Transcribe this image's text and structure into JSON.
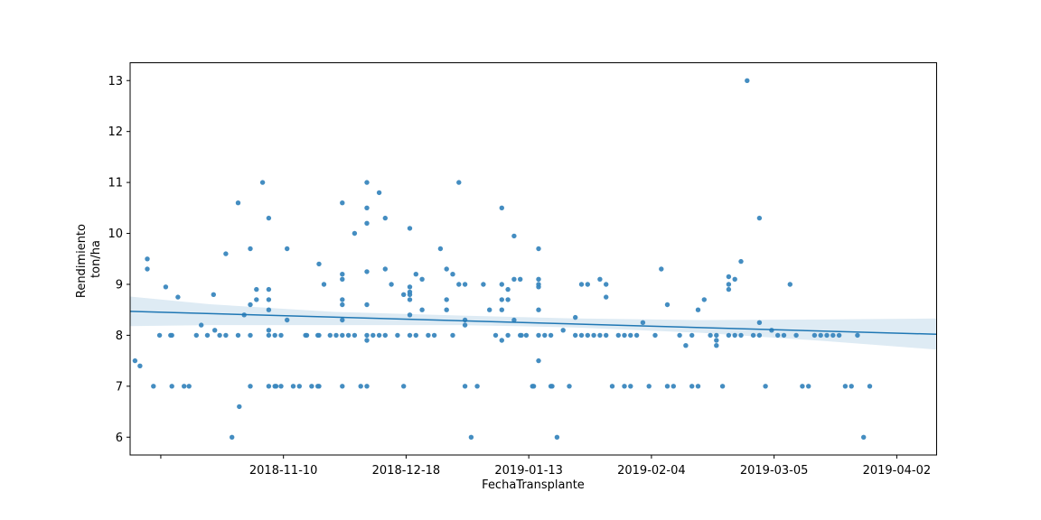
{
  "chart_data": {
    "type": "scatter",
    "title": "",
    "xlabel": "FechaTransplante",
    "ylabel": [
      "Rendimiento",
      "ton/ha"
    ],
    "x_ticks": [
      {
        "x": 12,
        "label": ""
      },
      {
        "x": 32,
        "label": "2018-11-10"
      },
      {
        "x": 52,
        "label": "2018-12-18"
      },
      {
        "x": 72,
        "label": "2019-01-13"
      },
      {
        "x": 92,
        "label": "2019-02-04"
      },
      {
        "x": 112,
        "label": "2019-03-05"
      },
      {
        "x": 132,
        "label": "2019-04-02"
      }
    ],
    "xlim": [
      7,
      138.5
    ],
    "ylim": [
      5.65,
      13.35
    ],
    "y_ticks": [
      6,
      7,
      8,
      9,
      10,
      11,
      12,
      13
    ],
    "grid": false,
    "legend": "none",
    "point_color": "#3a87be",
    "line_color": "#1f77b4",
    "band_color": "#1f77b4",
    "regression": {
      "x": [
        7,
        138.5
      ],
      "y": [
        8.47,
        8.02
      ]
    },
    "ci_band": {
      "x": [
        7,
        20,
        40,
        60,
        70,
        80,
        100,
        120,
        138.5
      ],
      "upper": [
        8.76,
        8.61,
        8.46,
        8.39,
        8.36,
        8.33,
        8.3,
        8.31,
        8.33
      ],
      "lower": [
        8.18,
        8.2,
        8.2,
        8.2,
        8.18,
        8.15,
        8.05,
        7.89,
        7.72
      ]
    },
    "points": [
      [
        7.8,
        7.5
      ],
      [
        8.6,
        7.4
      ],
      [
        9.8,
        9.5
      ],
      [
        9.8,
        9.3
      ],
      [
        10.8,
        7.0
      ],
      [
        11.8,
        8.0
      ],
      [
        12.8,
        8.95
      ],
      [
        13.6,
        8.0
      ],
      [
        13.8,
        8.0
      ],
      [
        13.8,
        7.0
      ],
      [
        14.8,
        8.75
      ],
      [
        15.8,
        7.0
      ],
      [
        16.6,
        7.0
      ],
      [
        17.8,
        8.0
      ],
      [
        18.6,
        8.2
      ],
      [
        19.6,
        8.0
      ],
      [
        20.6,
        8.8
      ],
      [
        20.8,
        8.1
      ],
      [
        21.6,
        8.0
      ],
      [
        22.6,
        9.6
      ],
      [
        22.6,
        8.0
      ],
      [
        23.6,
        6.0
      ],
      [
        24.6,
        10.6
      ],
      [
        24.6,
        8.0
      ],
      [
        24.8,
        6.6
      ],
      [
        25.6,
        8.4
      ],
      [
        26.6,
        9.7
      ],
      [
        26.6,
        8.6
      ],
      [
        26.6,
        8.0
      ],
      [
        26.6,
        7.0
      ],
      [
        27.6,
        8.9
      ],
      [
        27.6,
        8.7
      ],
      [
        28.6,
        11.0
      ],
      [
        29.6,
        10.3
      ],
      [
        29.6,
        8.9
      ],
      [
        29.6,
        8.7
      ],
      [
        29.6,
        8.5
      ],
      [
        29.6,
        8.1
      ],
      [
        29.6,
        8.0
      ],
      [
        29.6,
        7.0
      ],
      [
        30.6,
        8.0
      ],
      [
        30.6,
        7.0
      ],
      [
        30.8,
        7.0
      ],
      [
        31.6,
        8.0
      ],
      [
        31.6,
        7.0
      ],
      [
        32.6,
        9.7
      ],
      [
        32.6,
        8.3
      ],
      [
        33.6,
        7.0
      ],
      [
        34.6,
        7.0
      ],
      [
        35.6,
        8.0
      ],
      [
        35.8,
        8.0
      ],
      [
        36.6,
        7.0
      ],
      [
        37.6,
        8.0
      ],
      [
        37.6,
        7.0
      ],
      [
        37.8,
        9.4
      ],
      [
        37.8,
        8.0
      ],
      [
        37.8,
        7.0
      ],
      [
        38.6,
        9.0
      ],
      [
        39.6,
        8.0
      ],
      [
        40.6,
        8.0
      ],
      [
        41.6,
        10.6
      ],
      [
        41.6,
        9.2
      ],
      [
        41.6,
        9.1
      ],
      [
        41.6,
        8.7
      ],
      [
        41.6,
        8.6
      ],
      [
        41.6,
        8.3
      ],
      [
        41.6,
        8.0
      ],
      [
        41.6,
        7.0
      ],
      [
        42.6,
        8.0
      ],
      [
        43.6,
        10.0
      ],
      [
        43.6,
        8.0
      ],
      [
        44.6,
        7.0
      ],
      [
        45.6,
        11.0
      ],
      [
        45.6,
        10.5
      ],
      [
        45.6,
        10.2
      ],
      [
        45.6,
        9.25
      ],
      [
        45.6,
        8.6
      ],
      [
        45.6,
        8.0
      ],
      [
        45.6,
        7.9
      ],
      [
        45.6,
        7.0
      ],
      [
        46.6,
        8.0
      ],
      [
        47.6,
        10.8
      ],
      [
        47.6,
        8.0
      ],
      [
        48.6,
        10.3
      ],
      [
        48.6,
        9.3
      ],
      [
        48.6,
        8.0
      ],
      [
        49.6,
        9.0
      ],
      [
        50.6,
        8.0
      ],
      [
        51.6,
        8.8
      ],
      [
        51.6,
        7.0
      ],
      [
        52.6,
        10.1
      ],
      [
        52.6,
        8.95
      ],
      [
        52.6,
        8.85
      ],
      [
        52.6,
        8.8
      ],
      [
        52.6,
        8.7
      ],
      [
        52.6,
        8.4
      ],
      [
        52.6,
        8.0
      ],
      [
        53.6,
        9.2
      ],
      [
        53.6,
        8.0
      ],
      [
        54.6,
        9.1
      ],
      [
        54.6,
        8.5
      ],
      [
        55.6,
        8.0
      ],
      [
        56.6,
        8.0
      ],
      [
        57.6,
        9.7
      ],
      [
        58.6,
        9.3
      ],
      [
        58.6,
        8.7
      ],
      [
        58.6,
        8.5
      ],
      [
        59.6,
        9.2
      ],
      [
        59.6,
        8.0
      ],
      [
        60.6,
        11.0
      ],
      [
        60.6,
        9.0
      ],
      [
        61.6,
        9.0
      ],
      [
        61.6,
        8.3
      ],
      [
        61.6,
        8.2
      ],
      [
        61.6,
        7.0
      ],
      [
        62.6,
        6.0
      ],
      [
        63.6,
        7.0
      ],
      [
        64.6,
        9.0
      ],
      [
        65.6,
        8.5
      ],
      [
        66.6,
        8.0
      ],
      [
        67.6,
        10.5
      ],
      [
        67.6,
        9.0
      ],
      [
        67.6,
        8.7
      ],
      [
        67.6,
        8.5
      ],
      [
        67.6,
        7.9
      ],
      [
        68.6,
        8.9
      ],
      [
        68.6,
        8.7
      ],
      [
        68.6,
        8.0
      ],
      [
        69.6,
        9.95
      ],
      [
        69.6,
        9.1
      ],
      [
        69.6,
        8.3
      ],
      [
        70.6,
        9.1
      ],
      [
        70.6,
        8.0
      ],
      [
        70.8,
        8.0
      ],
      [
        71.6,
        8.0
      ],
      [
        72.6,
        7.0
      ],
      [
        72.8,
        7.0
      ],
      [
        73.6,
        9.7
      ],
      [
        73.6,
        9.1
      ],
      [
        73.6,
        9.0
      ],
      [
        73.6,
        8.95
      ],
      [
        73.6,
        8.5
      ],
      [
        73.6,
        8.0
      ],
      [
        73.6,
        7.5
      ],
      [
        74.6,
        8.0
      ],
      [
        75.6,
        8.0
      ],
      [
        75.6,
        7.0
      ],
      [
        75.8,
        7.0
      ],
      [
        76.6,
        6.0
      ],
      [
        77.6,
        8.1
      ],
      [
        78.6,
        7.0
      ],
      [
        79.6,
        8.35
      ],
      [
        79.6,
        8.0
      ],
      [
        80.6,
        9.0
      ],
      [
        80.6,
        8.0
      ],
      [
        81.6,
        9.0
      ],
      [
        81.6,
        8.0
      ],
      [
        82.6,
        8.0
      ],
      [
        83.6,
        9.1
      ],
      [
        83.6,
        8.0
      ],
      [
        84.6,
        9.0
      ],
      [
        84.6,
        8.75
      ],
      [
        84.6,
        8.0
      ],
      [
        85.6,
        7.0
      ],
      [
        86.6,
        8.0
      ],
      [
        87.6,
        8.0
      ],
      [
        87.6,
        7.0
      ],
      [
        88.6,
        8.0
      ],
      [
        88.6,
        7.0
      ],
      [
        89.6,
        8.0
      ],
      [
        90.6,
        8.25
      ],
      [
        91.6,
        7.0
      ],
      [
        92.6,
        8.0
      ],
      [
        93.6,
        9.3
      ],
      [
        94.6,
        8.6
      ],
      [
        94.6,
        7.0
      ],
      [
        95.6,
        7.0
      ],
      [
        96.6,
        8.0
      ],
      [
        97.6,
        7.8
      ],
      [
        98.6,
        8.0
      ],
      [
        98.6,
        7.0
      ],
      [
        99.6,
        8.5
      ],
      [
        99.6,
        7.0
      ],
      [
        100.6,
        8.7
      ],
      [
        101.6,
        8.0
      ],
      [
        102.6,
        8.0
      ],
      [
        102.6,
        7.9
      ],
      [
        102.6,
        7.8
      ],
      [
        103.6,
        7.0
      ],
      [
        104.6,
        9.15
      ],
      [
        104.6,
        9.0
      ],
      [
        104.6,
        8.9
      ],
      [
        104.6,
        8.0
      ],
      [
        105.6,
        9.1
      ],
      [
        105.6,
        8.0
      ],
      [
        106.6,
        9.45
      ],
      [
        106.6,
        8.0
      ],
      [
        107.6,
        13.0
      ],
      [
        108.6,
        8.0
      ],
      [
        109.6,
        10.3
      ],
      [
        109.6,
        8.25
      ],
      [
        109.6,
        8.0
      ],
      [
        110.6,
        7.0
      ],
      [
        111.6,
        8.1
      ],
      [
        112.6,
        8.0
      ],
      [
        113.6,
        8.0
      ],
      [
        114.6,
        9.0
      ],
      [
        115.6,
        8.0
      ],
      [
        116.6,
        7.0
      ],
      [
        117.6,
        7.0
      ],
      [
        118.6,
        8.0
      ],
      [
        119.6,
        8.0
      ],
      [
        120.6,
        8.0
      ],
      [
        121.6,
        8.0
      ],
      [
        122.6,
        8.0
      ],
      [
        123.6,
        7.0
      ],
      [
        124.6,
        7.0
      ],
      [
        125.6,
        8.0
      ],
      [
        126.6,
        6.0
      ],
      [
        127.6,
        7.0
      ]
    ]
  }
}
